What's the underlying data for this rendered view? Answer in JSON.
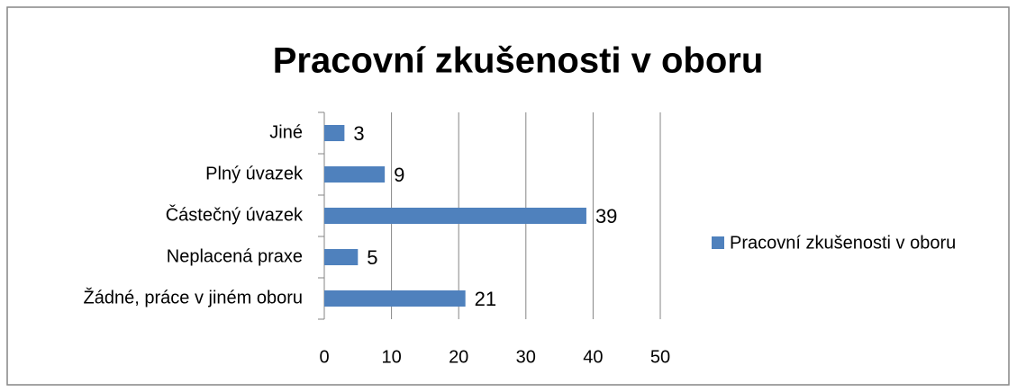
{
  "chart_data": {
    "type": "bar",
    "orientation": "horizontal",
    "title": "Pracovní zkušenosti v oboru",
    "categories": [
      "Žádné, práce v jiném oboru",
      "Neplacená praxe",
      "Částečný úvazek",
      "Plný úvazek",
      "Jiné"
    ],
    "series": [
      {
        "name": "Pracovní zkušenosti v oboru",
        "color": "#4f81bd",
        "values": [
          21,
          5,
          39,
          9,
          3
        ]
      }
    ],
    "xlim": [
      0,
      50
    ],
    "xticks": [
      0,
      10,
      20,
      30,
      40,
      50
    ],
    "grid": true,
    "legend": "right",
    "data_labels": true
  }
}
